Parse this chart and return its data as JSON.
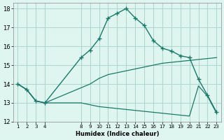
{
  "xlabel": "Humidex (Indice chaleur)",
  "ylabel": "",
  "bg_color": "#dff5f0",
  "grid_color": "#b0d8d0",
  "line_color": "#1a7a6a",
  "xlim": [
    0.5,
    23.5
  ],
  "ylim": [
    12,
    18.3
  ],
  "yticks": [
    12,
    13,
    14,
    15,
    16,
    17,
    18
  ],
  "xticks": [
    1,
    2,
    3,
    4,
    8,
    9,
    10,
    11,
    12,
    13,
    14,
    15,
    16,
    17,
    18,
    19,
    20,
    21,
    22,
    23
  ],
  "series": [
    {
      "x": [
        1,
        2,
        3,
        4,
        8,
        9,
        10,
        11,
        12,
        13,
        14,
        15,
        16,
        17,
        18,
        19,
        20,
        21,
        22,
        23
      ],
      "y": [
        14.0,
        13.7,
        13.1,
        13.0,
        15.4,
        15.8,
        16.4,
        17.5,
        17.75,
        18.0,
        17.5,
        17.1,
        16.3,
        15.9,
        15.75,
        15.5,
        15.4,
        14.25,
        13.4,
        12.5
      ],
      "marker": true
    },
    {
      "x": [
        1,
        2,
        3,
        4,
        8,
        9,
        10,
        11,
        12,
        13,
        14,
        15,
        16,
        17,
        18,
        19,
        20,
        21,
        22,
        23
      ],
      "y": [
        14.0,
        13.7,
        13.1,
        13.0,
        13.8,
        14.0,
        14.3,
        14.5,
        14.6,
        14.7,
        14.8,
        14.9,
        15.0,
        15.1,
        15.15,
        15.2,
        15.25,
        15.3,
        15.35,
        15.4
      ],
      "marker": false
    },
    {
      "x": [
        1,
        2,
        3,
        4,
        8,
        9,
        10,
        11,
        12,
        13,
        14,
        15,
        16,
        17,
        18,
        19,
        20,
        21,
        22,
        23
      ],
      "y": [
        14.0,
        13.7,
        13.1,
        13.0,
        13.0,
        12.9,
        12.8,
        12.75,
        12.7,
        12.65,
        12.6,
        12.55,
        12.5,
        12.45,
        12.4,
        12.35,
        12.3,
        13.9,
        13.35,
        12.45
      ],
      "marker": false
    }
  ]
}
